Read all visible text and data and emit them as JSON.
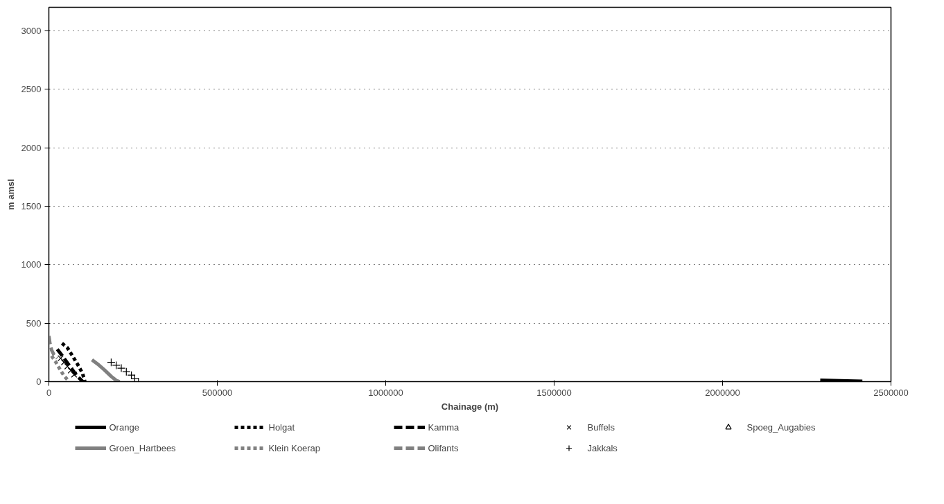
{
  "chart_data": {
    "type": "line",
    "xlabel": "Chainage (m)",
    "ylabel": "m amsl",
    "xlim": [
      0,
      2500000
    ],
    "ylim": [
      0,
      3200
    ],
    "xticks": [
      0,
      500000,
      1000000,
      1500000,
      2000000,
      2500000
    ],
    "yticks": [
      0,
      500,
      1000,
      1500,
      2000,
      2500,
      3000
    ],
    "grid": "y",
    "legend": "bottom",
    "series": [
      {
        "name": "Orange",
        "line_style": "solid",
        "color": "#000000",
        "x": [
          2290000,
          2330000,
          2370000,
          2415000
        ],
        "values": [
          12,
          9,
          6,
          3
        ]
      },
      {
        "name": "Holgat",
        "line_style": "dotted",
        "color": "#000000",
        "x": [
          39000,
          55000,
          70000,
          85000,
          100000,
          107000
        ],
        "values": [
          328,
          290,
          220,
          150,
          70,
          0
        ]
      },
      {
        "name": "Kamma",
        "line_style": "dashed",
        "color": "#000000",
        "x": [
          25000,
          40000,
          55000,
          70000,
          85000,
          101000
        ],
        "values": [
          277,
          220,
          160,
          100,
          45,
          0
        ]
      },
      {
        "name": "Buffels",
        "type": "scatter",
        "marker": "x",
        "color": "#000000",
        "x": [
          35000,
          45000,
          55000,
          65000,
          75000
        ],
        "values": [
          200,
          165,
          130,
          95,
          60
        ]
      },
      {
        "name": "Spoeg_Augabies",
        "type": "scatter",
        "marker": "triangle",
        "color": "#000000"
      },
      {
        "name": "Groen_Hartbees",
        "line_style": "solid",
        "color": "#808080",
        "x": [
          128000,
          145000,
          165000,
          185000,
          200000,
          210000
        ],
        "values": [
          187,
          150,
          100,
          45,
          10,
          0
        ]
      },
      {
        "name": "Klein Koerap",
        "line_style": "dotted",
        "color": "#808080",
        "x": [
          8000,
          20000,
          32000,
          45000,
          60000
        ],
        "values": [
          220,
          170,
          110,
          50,
          0
        ]
      },
      {
        "name": "Olifants",
        "line_style": "dashed",
        "color": "#808080",
        "x": [
          0,
          3000,
          8000,
          15000,
          25000
        ],
        "values": [
          390,
          330,
          270,
          230,
          200
        ]
      },
      {
        "name": "Jakkals",
        "type": "scatter",
        "marker": "cross",
        "color": "#000000",
        "x": [
          185000,
          200000,
          215000,
          230000,
          245000,
          255000,
          266000
        ],
        "values": [
          165,
          140,
          115,
          85,
          55,
          25,
          0
        ]
      }
    ]
  }
}
